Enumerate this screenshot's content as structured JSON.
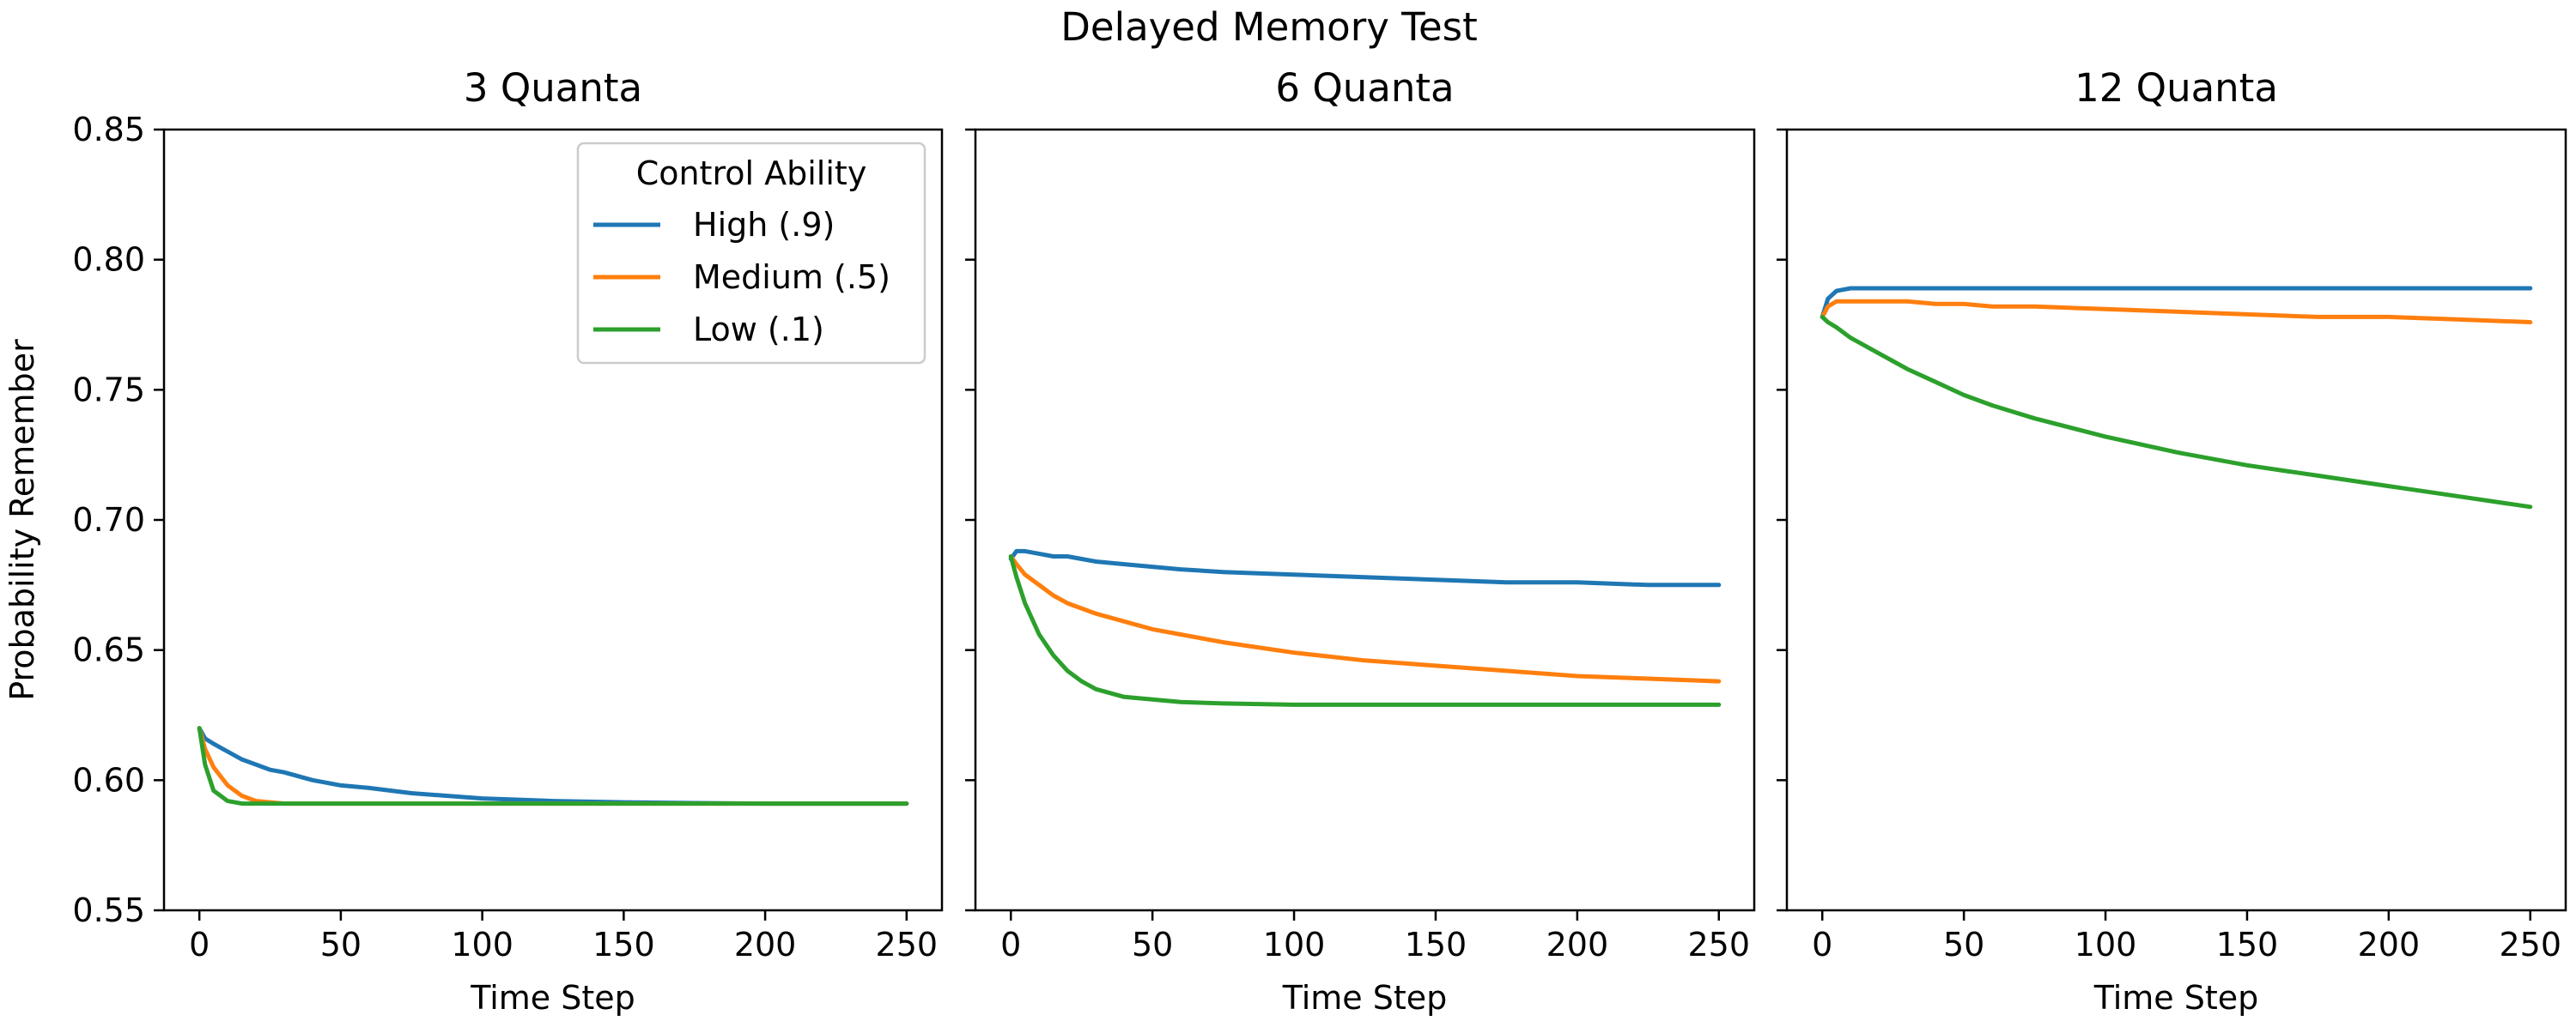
{
  "figure": {
    "suptitle": "Delayed Memory Test"
  },
  "chart_data": [
    {
      "type": "line",
      "title": "3 Quanta",
      "xlabel": "Time Step",
      "ylabel": "Probability Remember",
      "xlim": [
        -12.5,
        262.5
      ],
      "ylim": [
        0.55,
        0.85
      ],
      "xticks": [
        0,
        50,
        100,
        150,
        200,
        250
      ],
      "yticks": [
        0.55,
        0.6,
        0.65,
        0.7,
        0.75,
        0.8,
        0.85
      ],
      "ytick_labels": [
        "0.55",
        "0.60",
        "0.65",
        "0.70",
        "0.75",
        "0.80",
        "0.85"
      ],
      "show_ytick_labels": true,
      "grid": false,
      "legend": {
        "title": "Control Ability",
        "placement": "top-right"
      },
      "x": [
        0,
        2,
        5,
        10,
        15,
        20,
        25,
        30,
        40,
        50,
        60,
        75,
        100,
        125,
        150,
        175,
        200,
        225,
        250
      ],
      "series": [
        {
          "name": "High (.9)",
          "color": "#1f77b4",
          "values": [
            0.62,
            0.616,
            0.614,
            0.611,
            0.608,
            0.606,
            0.604,
            0.603,
            0.6,
            0.598,
            0.597,
            0.595,
            0.593,
            0.592,
            0.5915,
            0.5912,
            0.591,
            0.591,
            0.591
          ]
        },
        {
          "name": "Medium (.5)",
          "color": "#ff7f0e",
          "values": [
            0.62,
            0.612,
            0.605,
            0.598,
            0.594,
            0.592,
            0.5915,
            0.591,
            0.591,
            0.591,
            0.591,
            0.591,
            0.591,
            0.591,
            0.591,
            0.591,
            0.591,
            0.591,
            0.591
          ]
        },
        {
          "name": "Low (.1)",
          "color": "#2ca02c",
          "values": [
            0.62,
            0.606,
            0.596,
            0.592,
            0.591,
            0.591,
            0.591,
            0.591,
            0.591,
            0.591,
            0.591,
            0.591,
            0.591,
            0.591,
            0.591,
            0.591,
            0.591,
            0.591,
            0.591
          ]
        }
      ]
    },
    {
      "type": "line",
      "title": "6 Quanta",
      "xlabel": "Time Step",
      "ylabel": "",
      "xlim": [
        -12.5,
        262.5
      ],
      "ylim": [
        0.55,
        0.85
      ],
      "xticks": [
        0,
        50,
        100,
        150,
        200,
        250
      ],
      "yticks": [
        0.55,
        0.6,
        0.65,
        0.7,
        0.75,
        0.8,
        0.85
      ],
      "ytick_labels": [
        "",
        "",
        "",
        "",
        "",
        "",
        ""
      ],
      "show_ytick_labels": false,
      "grid": false,
      "legend": null,
      "x": [
        0,
        2,
        5,
        10,
        15,
        20,
        25,
        30,
        40,
        50,
        60,
        75,
        100,
        125,
        150,
        175,
        200,
        225,
        250
      ],
      "series": [
        {
          "name": "High (.9)",
          "color": "#1f77b4",
          "values": [
            0.685,
            0.688,
            0.688,
            0.687,
            0.686,
            0.686,
            0.685,
            0.684,
            0.683,
            0.682,
            0.681,
            0.68,
            0.679,
            0.678,
            0.677,
            0.676,
            0.676,
            0.675,
            0.675
          ]
        },
        {
          "name": "Medium (.5)",
          "color": "#ff7f0e",
          "values": [
            0.686,
            0.683,
            0.679,
            0.675,
            0.671,
            0.668,
            0.666,
            0.664,
            0.661,
            0.658,
            0.656,
            0.653,
            0.649,
            0.646,
            0.644,
            0.642,
            0.64,
            0.639,
            0.638
          ]
        },
        {
          "name": "Low (.1)",
          "color": "#2ca02c",
          "values": [
            0.686,
            0.678,
            0.668,
            0.656,
            0.648,
            0.642,
            0.638,
            0.635,
            0.632,
            0.631,
            0.63,
            0.6295,
            0.629,
            0.629,
            0.629,
            0.629,
            0.629,
            0.629,
            0.629
          ]
        }
      ]
    },
    {
      "type": "line",
      "title": "12 Quanta",
      "xlabel": "Time Step",
      "ylabel": "",
      "xlim": [
        -12.5,
        262.5
      ],
      "ylim": [
        0.55,
        0.85
      ],
      "xticks": [
        0,
        50,
        100,
        150,
        200,
        250
      ],
      "yticks": [
        0.55,
        0.6,
        0.65,
        0.7,
        0.75,
        0.8,
        0.85
      ],
      "ytick_labels": [
        "",
        "",
        "",
        "",
        "",
        "",
        ""
      ],
      "show_ytick_labels": false,
      "grid": false,
      "legend": null,
      "x": [
        0,
        2,
        5,
        10,
        15,
        20,
        25,
        30,
        40,
        50,
        60,
        75,
        100,
        125,
        150,
        175,
        200,
        225,
        250
      ],
      "series": [
        {
          "name": "High (.9)",
          "color": "#1f77b4",
          "values": [
            0.778,
            0.785,
            0.788,
            0.789,
            0.789,
            0.789,
            0.789,
            0.789,
            0.789,
            0.789,
            0.789,
            0.789,
            0.789,
            0.789,
            0.789,
            0.789,
            0.789,
            0.789,
            0.789
          ]
        },
        {
          "name": "Medium (.5)",
          "color": "#ff7f0e",
          "values": [
            0.778,
            0.782,
            0.784,
            0.784,
            0.784,
            0.784,
            0.784,
            0.784,
            0.783,
            0.783,
            0.782,
            0.782,
            0.781,
            0.78,
            0.779,
            0.778,
            0.778,
            0.777,
            0.776
          ]
        },
        {
          "name": "Low (.1)",
          "color": "#2ca02c",
          "values": [
            0.778,
            0.776,
            0.774,
            0.77,
            0.767,
            0.764,
            0.761,
            0.758,
            0.753,
            0.748,
            0.744,
            0.739,
            0.732,
            0.726,
            0.721,
            0.717,
            0.713,
            0.709,
            0.705
          ]
        }
      ]
    }
  ]
}
